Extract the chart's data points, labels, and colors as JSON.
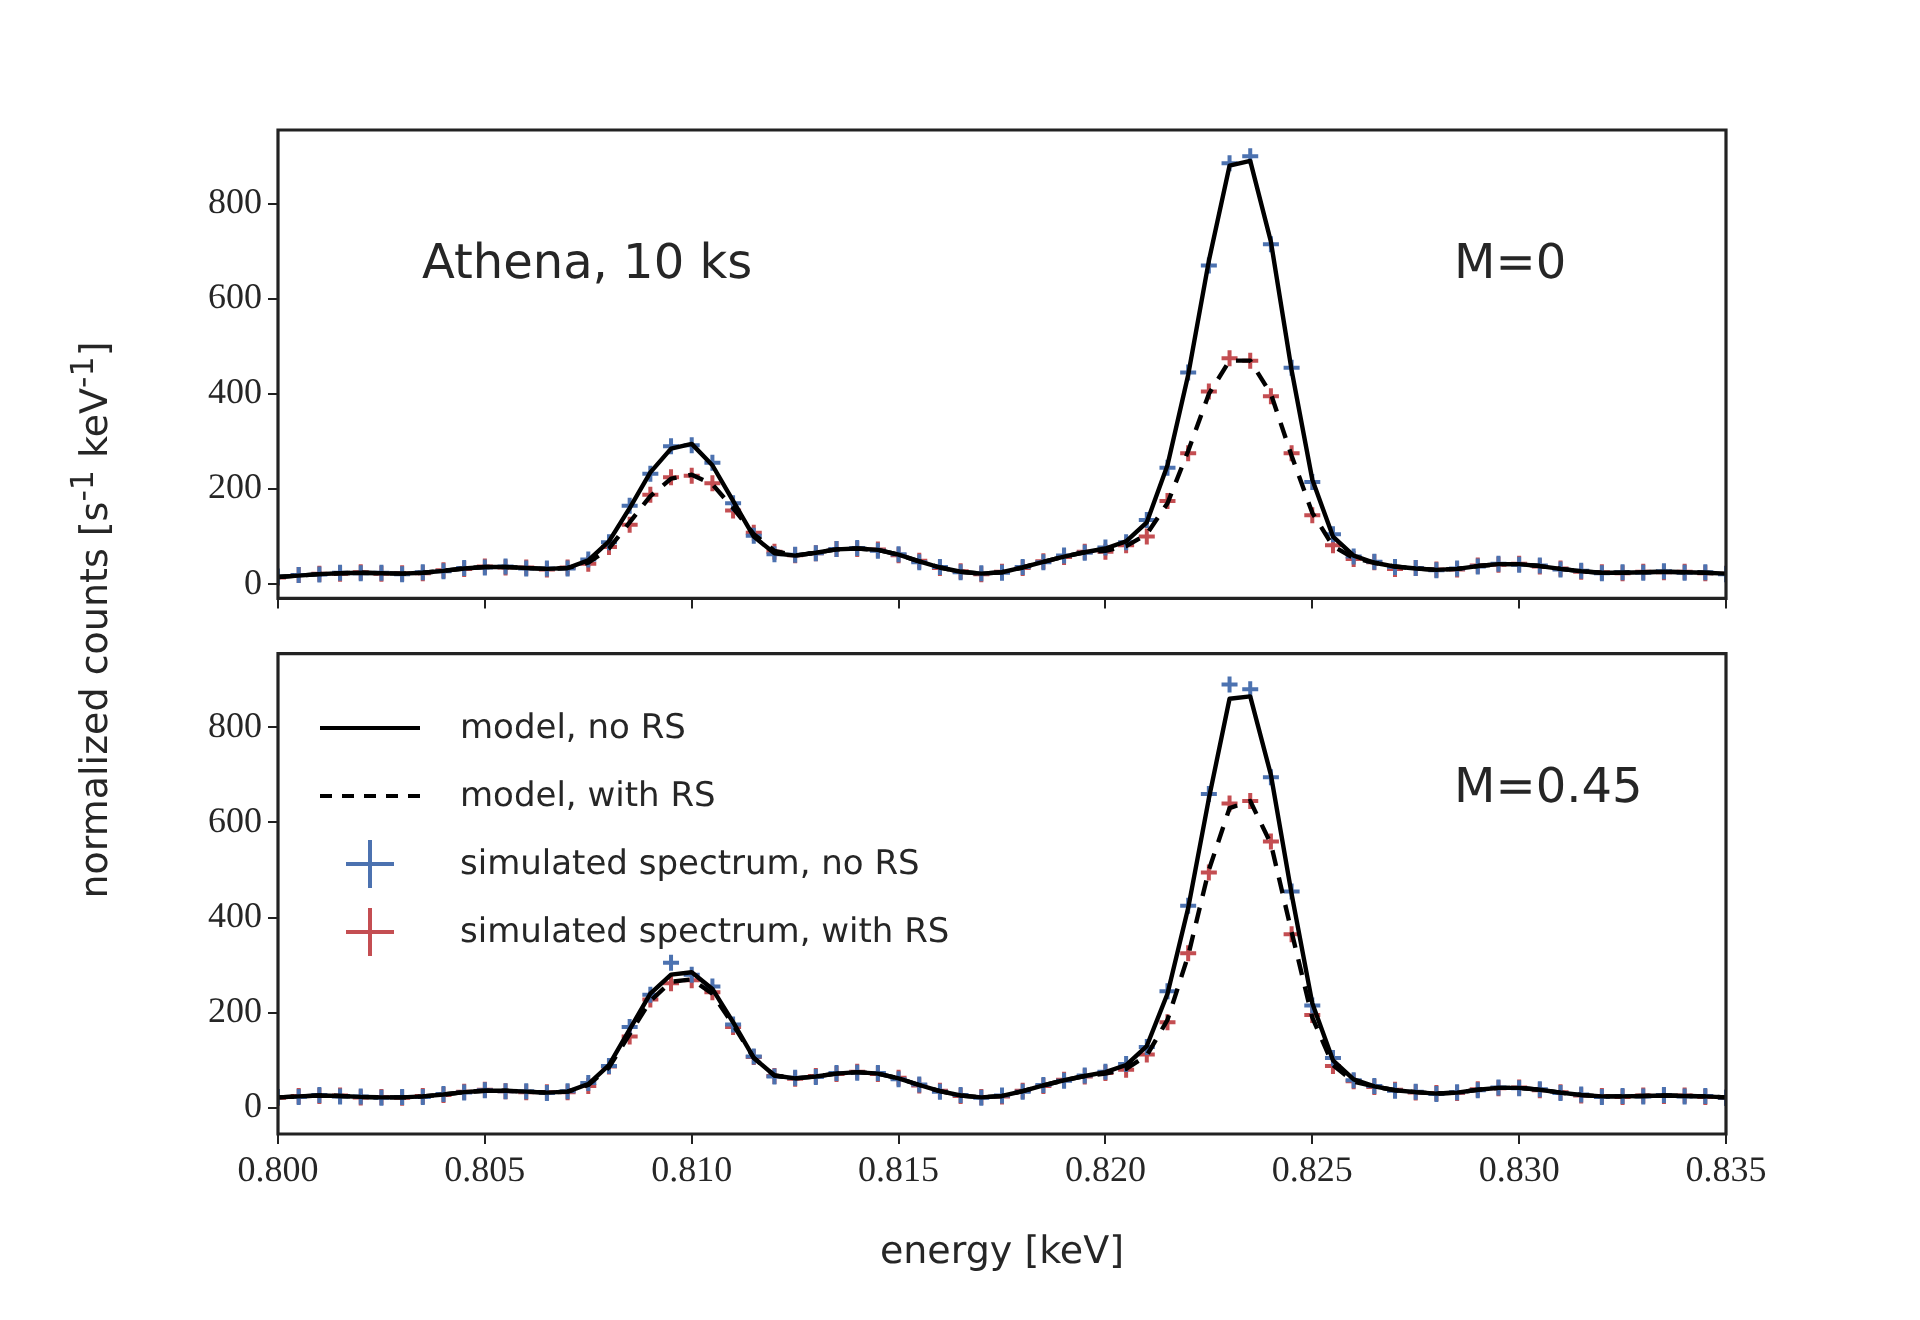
{
  "chart_data": [
    {
      "type": "line",
      "ylabel": "normalized counts [s$^{-1}$ keV$^{-1}$]",
      "annotations": [
        "Athena, 10 ks",
        "M=0"
      ],
      "tick_labels": "y",
      "xlim": [
        0.8,
        0.835
      ],
      "xticks": [
        {
          "value": 0.8,
          "label": null
        },
        {
          "value": 0.805,
          "label": null
        },
        {
          "value": 0.81,
          "label": null
        },
        {
          "value": 0.815,
          "label": null
        },
        {
          "value": 0.82,
          "label": null
        },
        {
          "value": 0.825,
          "label": null
        },
        {
          "value": 0.83,
          "label": null
        },
        {
          "value": 0.835,
          "label": null
        }
      ],
      "ylim": [
        -30,
        955
      ],
      "yticks": [
        0,
        200,
        400,
        600,
        800
      ],
      "x": [
        0.8,
        0.8005,
        0.801,
        0.8015,
        0.802,
        0.8025,
        0.803,
        0.8035,
        0.804,
        0.8045,
        0.805,
        0.8055,
        0.806,
        0.8065,
        0.807,
        0.8075,
        0.808,
        0.8085,
        0.809,
        0.8095,
        0.81,
        0.8105,
        0.811,
        0.8115,
        0.812,
        0.8125,
        0.813,
        0.8135,
        0.814,
        0.8145,
        0.815,
        0.8155,
        0.816,
        0.8165,
        0.817,
        0.8175,
        0.818,
        0.8185,
        0.819,
        0.8195,
        0.82,
        0.8205,
        0.821,
        0.8215,
        0.822,
        0.8225,
        0.823,
        0.8235,
        0.824,
        0.8245,
        0.825,
        0.8255,
        0.826,
        0.8265,
        0.827,
        0.8275,
        0.828,
        0.8285,
        0.829,
        0.8295,
        0.83,
        0.8305,
        0.831,
        0.8315,
        0.832,
        0.8325,
        0.833,
        0.8335,
        0.834,
        0.8345,
        0.835
      ],
      "series": [
        {
          "line_style": "solid",
          "color": "#000000",
          "values": [
            15,
            18,
            21,
            23,
            24,
            23,
            22,
            24,
            28,
            33,
            36,
            36,
            34,
            32,
            34,
            50,
            90,
            160,
            235,
            285,
            295,
            250,
            175,
            100,
            65,
            60,
            66,
            73,
            75,
            72,
            62,
            48,
            35,
            26,
            22,
            25,
            35,
            47,
            58,
            67,
            75,
            90,
            130,
            250,
            440,
            680,
            880,
            890,
            720,
            450,
            220,
            100,
            60,
            45,
            37,
            33,
            30,
            32,
            38,
            42,
            42,
            38,
            32,
            27,
            24,
            24,
            25,
            26,
            25,
            24,
            22
          ]
        },
        {
          "line_style": "dashed",
          "color": "#000000",
          "values": [
            15,
            18,
            21,
            23,
            24,
            23,
            22,
            24,
            28,
            33,
            36,
            36,
            34,
            32,
            34,
            45,
            75,
            130,
            185,
            222,
            230,
            210,
            160,
            105,
            70,
            60,
            66,
            73,
            75,
            72,
            62,
            48,
            35,
            26,
            22,
            25,
            35,
            47,
            58,
            67,
            70,
            80,
            105,
            170,
            280,
            400,
            470,
            470,
            400,
            270,
            150,
            80,
            55,
            45,
            37,
            33,
            30,
            32,
            38,
            42,
            42,
            38,
            32,
            27,
            24,
            24,
            25,
            26,
            25,
            24,
            22
          ]
        },
        {
          "type": "scatter",
          "marker": "cross",
          "color": "#4c72b0",
          "values": [
            16,
            19,
            20,
            24,
            23,
            24,
            21,
            25,
            27,
            34,
            35,
            37,
            33,
            33,
            33,
            52,
            88,
            165,
            232,
            290,
            292,
            255,
            170,
            102,
            63,
            62,
            65,
            74,
            76,
            70,
            63,
            46,
            36,
            25,
            23,
            24,
            36,
            46,
            60,
            66,
            77,
            88,
            135,
            245,
            445,
            670,
            885,
            900,
            715,
            455,
            215,
            105,
            58,
            47,
            36,
            34,
            29,
            33,
            37,
            43,
            41,
            39,
            31,
            28,
            23,
            25,
            24,
            27,
            24,
            25,
            21
          ]
        },
        {
          "type": "scatter",
          "marker": "cross",
          "color": "#c44e52",
          "values": [
            14,
            19,
            22,
            22,
            25,
            22,
            23,
            23,
            29,
            32,
            37,
            35,
            35,
            31,
            35,
            43,
            78,
            125,
            188,
            225,
            228,
            212,
            155,
            108,
            68,
            61,
            65,
            74,
            74,
            73,
            61,
            49,
            34,
            27,
            21,
            26,
            34,
            48,
            57,
            68,
            68,
            82,
            100,
            175,
            275,
            405,
            475,
            470,
            395,
            275,
            145,
            82,
            53,
            46,
            32,
            34,
            31,
            31,
            39,
            41,
            43,
            37,
            33,
            26,
            25,
            23,
            26,
            25,
            26,
            23,
            22
          ]
        }
      ]
    },
    {
      "type": "line",
      "xlabel": "energy [keV]",
      "annotations": [
        "M=0.45"
      ],
      "legend": "top left",
      "xlim": [
        0.8,
        0.835
      ],
      "xticks": [
        {
          "value": 0.8,
          "label": "0.800"
        },
        {
          "value": 0.805,
          "label": "0.805"
        },
        {
          "value": 0.81,
          "label": "0.810"
        },
        {
          "value": 0.815,
          "label": "0.815"
        },
        {
          "value": 0.82,
          "label": "0.820"
        },
        {
          "value": 0.825,
          "label": "0.825"
        },
        {
          "value": 0.83,
          "label": "0.830"
        },
        {
          "value": 0.835,
          "label": "0.835"
        }
      ],
      "ylim": [
        -55,
        955
      ],
      "yticks": [
        0,
        200,
        400,
        600,
        800
      ],
      "x": [
        0.8,
        0.8005,
        0.801,
        0.8015,
        0.802,
        0.8025,
        0.803,
        0.8035,
        0.804,
        0.8045,
        0.805,
        0.8055,
        0.806,
        0.8065,
        0.807,
        0.8075,
        0.808,
        0.8085,
        0.809,
        0.8095,
        0.81,
        0.8105,
        0.811,
        0.8115,
        0.812,
        0.8125,
        0.813,
        0.8135,
        0.814,
        0.8145,
        0.815,
        0.8155,
        0.816,
        0.8165,
        0.817,
        0.8175,
        0.818,
        0.8185,
        0.819,
        0.8195,
        0.82,
        0.8205,
        0.821,
        0.8215,
        0.822,
        0.8225,
        0.823,
        0.8235,
        0.824,
        0.8245,
        0.825,
        0.8255,
        0.826,
        0.8265,
        0.827,
        0.8275,
        0.828,
        0.8285,
        0.829,
        0.8295,
        0.83,
        0.8305,
        0.831,
        0.8315,
        0.832,
        0.8325,
        0.833,
        0.8335,
        0.834,
        0.8345,
        0.835
      ],
      "series": [
        {
          "name": "model, no RS",
          "line_style": "solid",
          "color": "#000000",
          "values": [
            22,
            24,
            26,
            25,
            23,
            22,
            22,
            24,
            28,
            33,
            36,
            36,
            34,
            32,
            34,
            50,
            90,
            165,
            240,
            280,
            285,
            250,
            180,
            105,
            68,
            62,
            66,
            72,
            75,
            72,
            62,
            48,
            35,
            26,
            22,
            25,
            35,
            47,
            58,
            67,
            75,
            90,
            130,
            240,
            420,
            650,
            860,
            865,
            700,
            450,
            220,
            100,
            60,
            45,
            37,
            33,
            30,
            32,
            38,
            42,
            42,
            38,
            32,
            27,
            24,
            24,
            25,
            26,
            25,
            24,
            22
          ]
        },
        {
          "name": "model, with RS",
          "line_style": "dashed",
          "color": "#000000",
          "values": [
            22,
            24,
            26,
            25,
            23,
            22,
            22,
            24,
            28,
            33,
            36,
            36,
            34,
            32,
            34,
            48,
            85,
            155,
            225,
            265,
            270,
            240,
            175,
            105,
            68,
            62,
            66,
            72,
            75,
            72,
            62,
            48,
            35,
            26,
            22,
            25,
            35,
            47,
            58,
            67,
            72,
            82,
            110,
            185,
            320,
            500,
            630,
            645,
            555,
            370,
            190,
            90,
            55,
            45,
            37,
            33,
            30,
            32,
            38,
            42,
            42,
            38,
            32,
            27,
            24,
            24,
            25,
            26,
            25,
            24,
            22
          ]
        },
        {
          "type": "scatter",
          "name": "simulated spectrum, no RS",
          "marker": "cross",
          "color": "#4c72b0",
          "values": [
            23,
            23,
            27,
            24,
            24,
            21,
            23,
            23,
            29,
            32,
            37,
            35,
            35,
            31,
            35,
            52,
            88,
            170,
            238,
            305,
            280,
            255,
            175,
            108,
            66,
            63,
            65,
            73,
            74,
            73,
            60,
            49,
            34,
            27,
            21,
            26,
            34,
            48,
            57,
            68,
            76,
            92,
            128,
            245,
            425,
            660,
            890,
            880,
            695,
            455,
            215,
            105,
            58,
            46,
            36,
            34,
            29,
            33,
            37,
            43,
            41,
            39,
            31,
            28,
            23,
            25,
            24,
            27,
            24,
            25,
            21
          ]
        },
        {
          "type": "scatter",
          "name": "simulated spectrum, with RS",
          "marker": "cross",
          "color": "#c44e52",
          "values": [
            21,
            25,
            25,
            26,
            22,
            23,
            21,
            25,
            27,
            34,
            38,
            35,
            33,
            33,
            33,
            46,
            87,
            150,
            228,
            262,
            268,
            243,
            170,
            107,
            67,
            61,
            67,
            71,
            76,
            71,
            63,
            47,
            36,
            25,
            23,
            24,
            36,
            46,
            59,
            66,
            73,
            80,
            112,
            180,
            325,
            495,
            640,
            645,
            560,
            365,
            195,
            88,
            56,
            44,
            38,
            32,
            31,
            31,
            39,
            41,
            43,
            37,
            33,
            26,
            25,
            23,
            26,
            25,
            26,
            23,
            21
          ]
        }
      ]
    }
  ]
}
